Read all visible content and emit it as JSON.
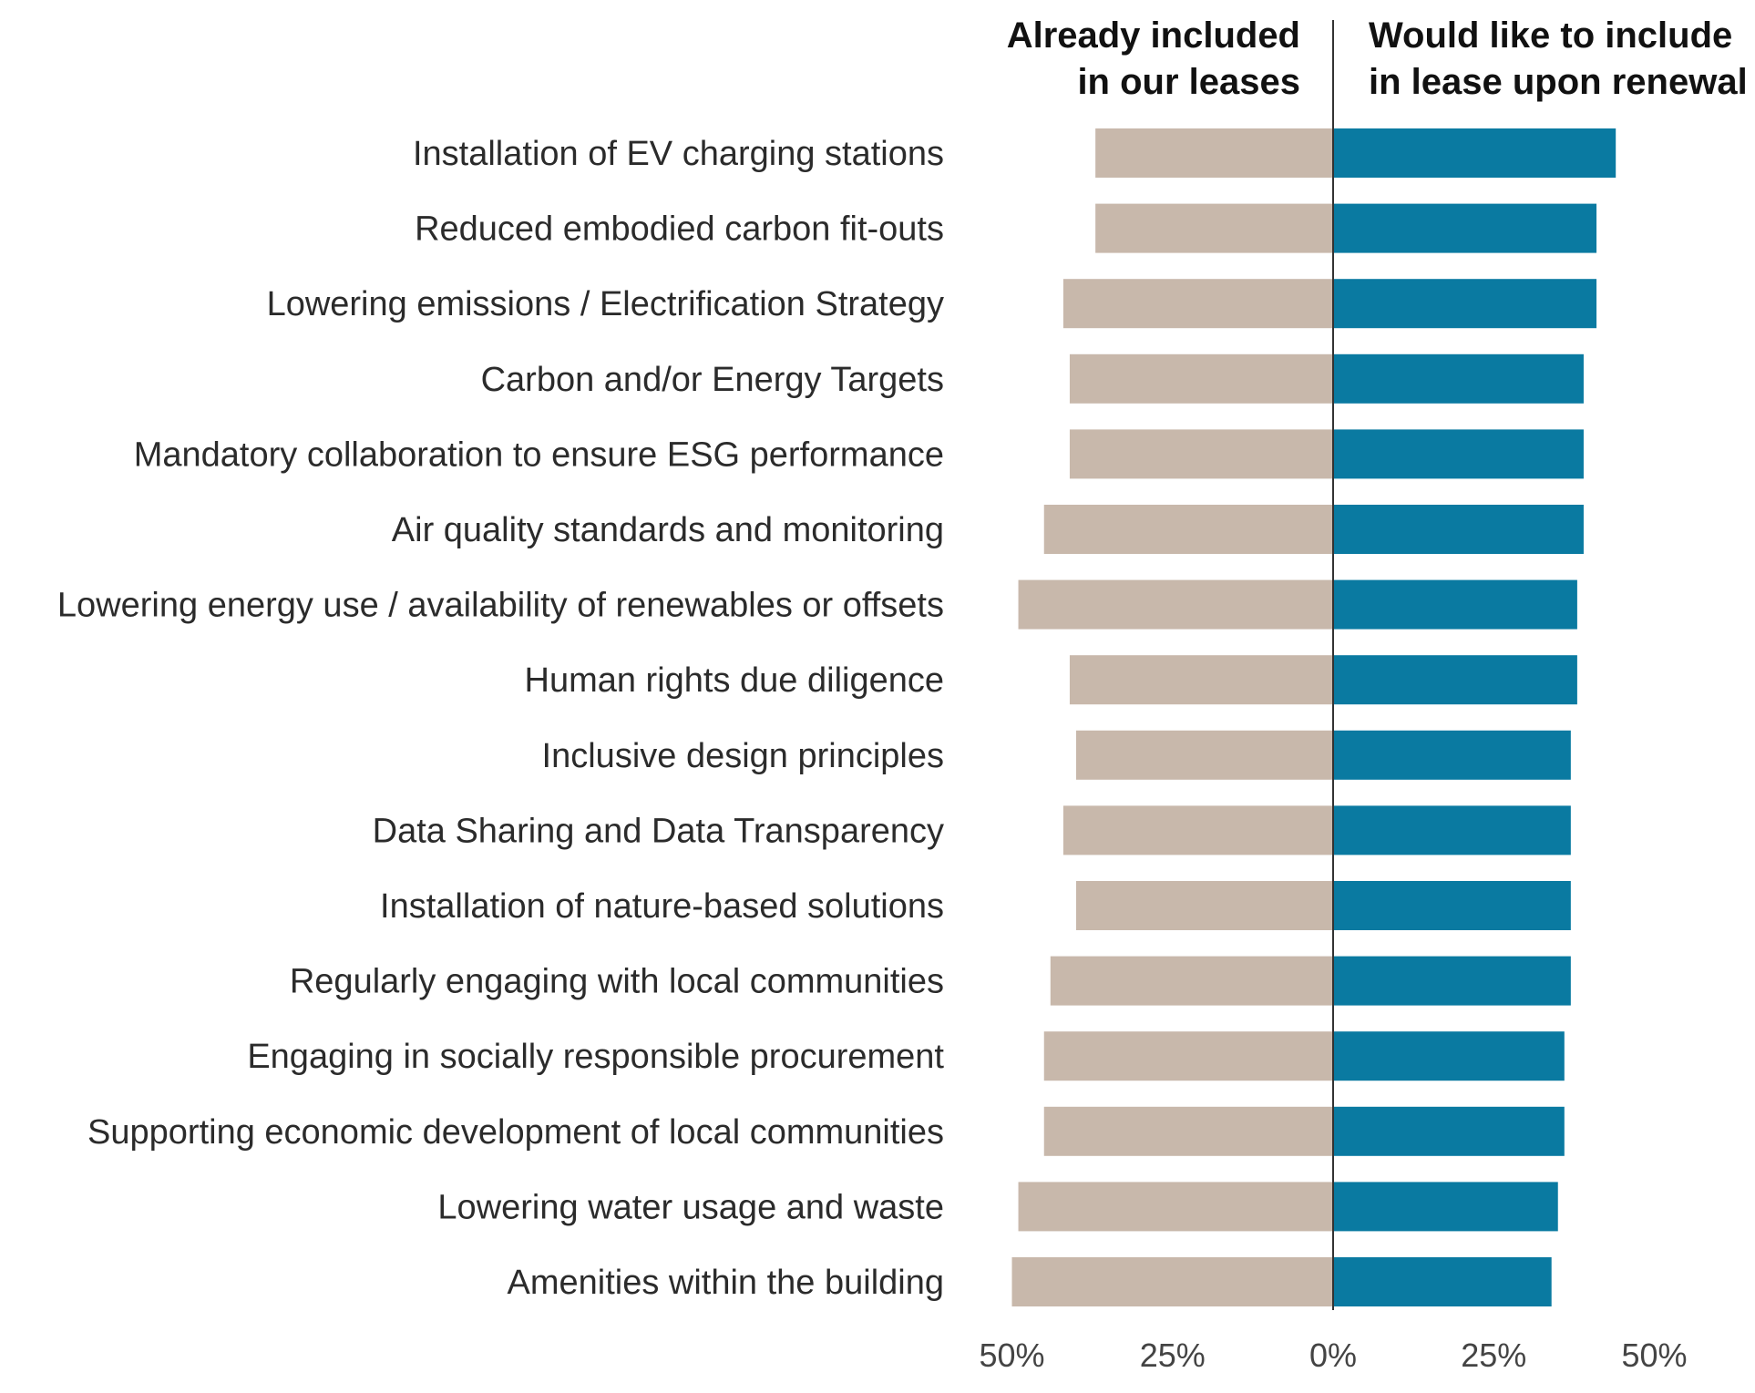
{
  "chart_data": {
    "type": "bar",
    "orientation": "horizontal-diverging",
    "title": "",
    "xlabel": "",
    "ylabel": "",
    "xlim": [
      -50,
      50
    ],
    "xtick_labels": [
      "50%",
      "25%",
      "0%",
      "25%",
      "50%"
    ],
    "xtick_values": [
      -50,
      -25,
      0,
      25,
      50
    ],
    "headers": {
      "left_line1": "Already included",
      "left_line2": "in our leases",
      "right_line1": "Would like to include",
      "right_line2": "in lease upon renewal"
    },
    "categories": [
      "Installation of EV charging stations",
      "Reduced embodied carbon fit-outs",
      "Lowering emissions / Electrification Strategy",
      "Carbon and/or Energy Targets",
      "Mandatory collaboration to ensure ESG performance",
      "Air quality standards and monitoring",
      "Lowering energy use / availability of renewables or offsets",
      "Human rights due diligence",
      "Inclusive design principles",
      "Data Sharing and Data Transparency",
      "Installation of nature-based solutions",
      "Regularly engaging with local communities",
      "Engaging in socially responsible procurement",
      "Supporting economic development of local communities",
      "Lowering water usage and waste",
      "Amenities within the building"
    ],
    "series": [
      {
        "name": "Already included in our leases",
        "color": "#c8b8ab",
        "values": [
          37,
          37,
          42,
          41,
          41,
          45,
          49,
          41,
          40,
          42,
          40,
          44,
          45,
          45,
          49,
          50
        ]
      },
      {
        "name": "Would like to include in lease upon renewal",
        "color": "#0a7aa1",
        "values": [
          44,
          41,
          41,
          39,
          39,
          39,
          38,
          38,
          37,
          37,
          37,
          37,
          36,
          36,
          35,
          34
        ]
      }
    ],
    "axis_color": "#333333"
  }
}
